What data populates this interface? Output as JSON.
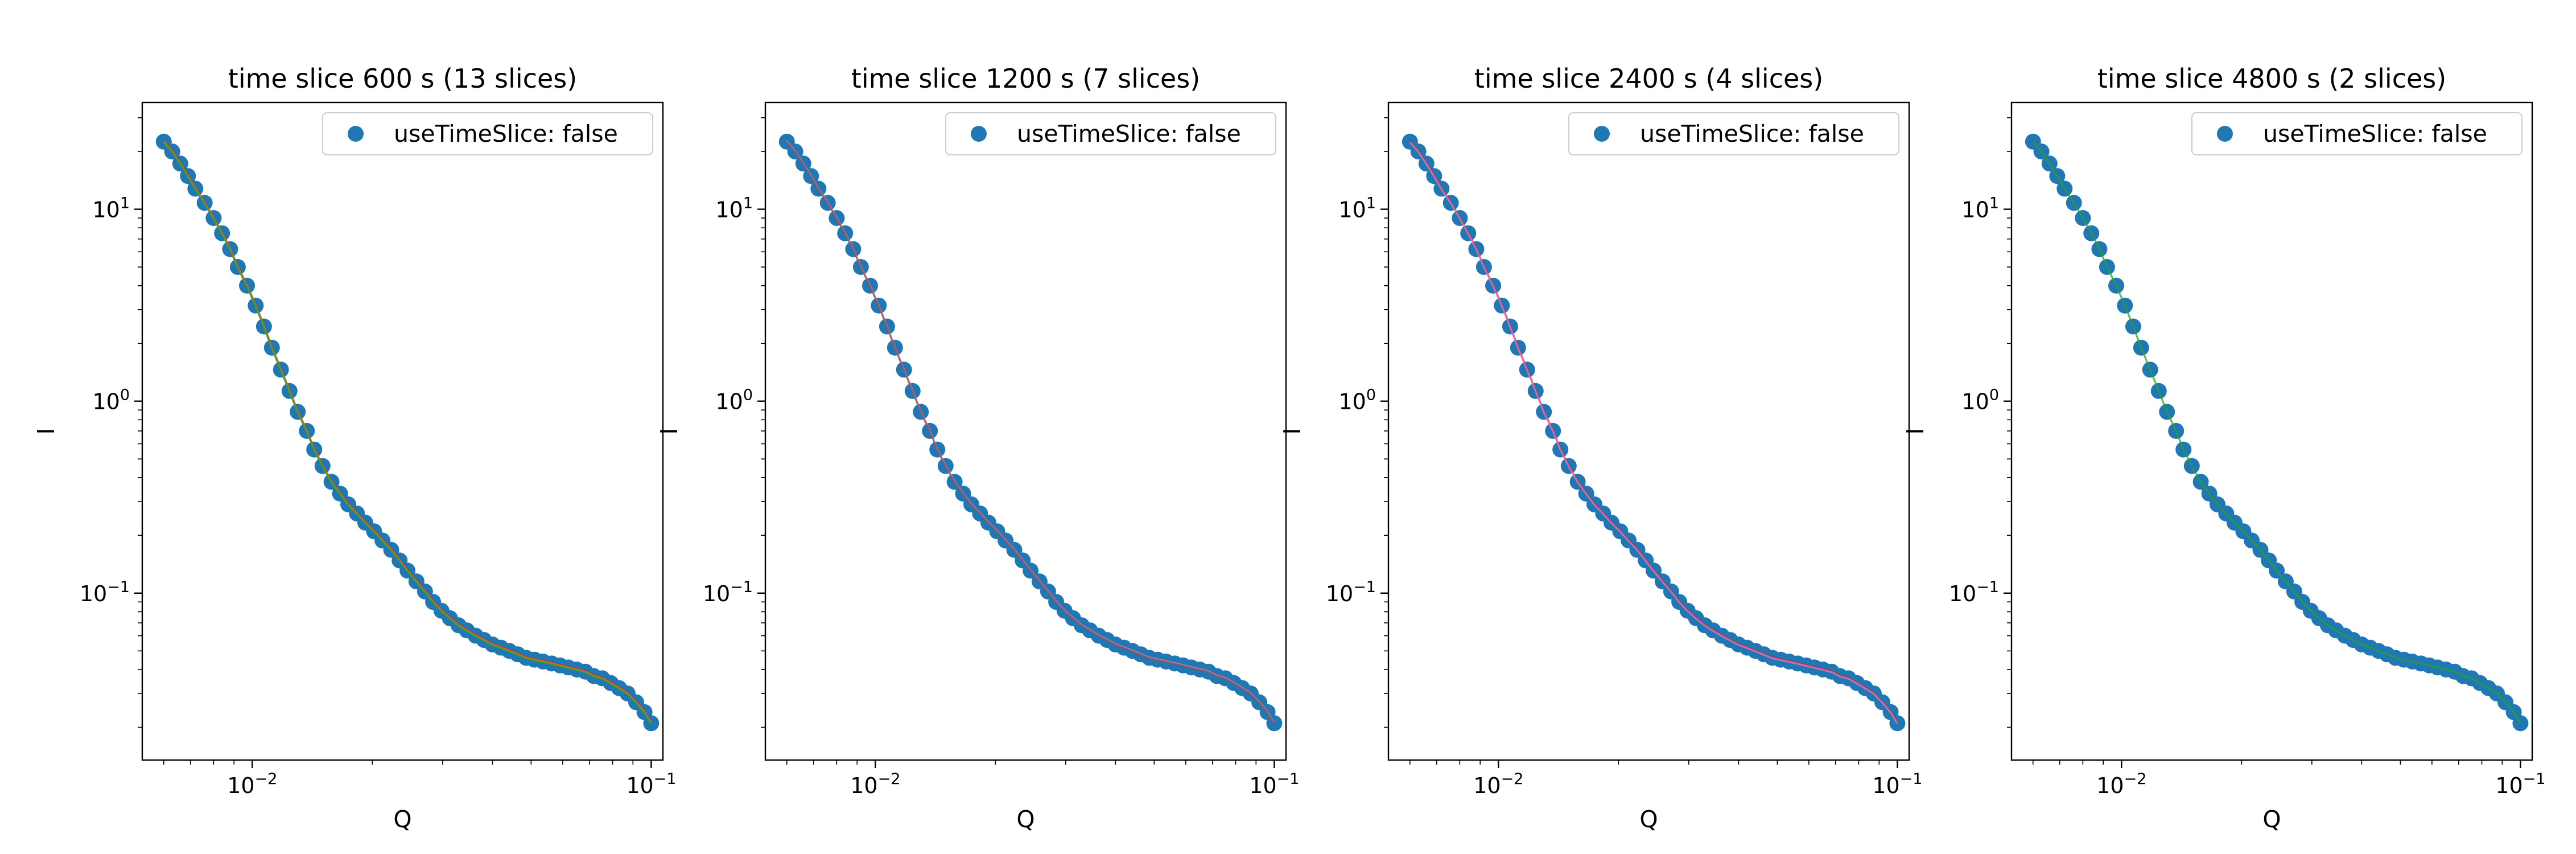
{
  "colors": {
    "marker": "#1f77b4",
    "line_red": "#d62728",
    "line_pink": "#e377c2",
    "line_green": "#2ca02c",
    "axes": "#000000",
    "legend_border": "#cccccc"
  },
  "chart_data": [
    {
      "type": "scatter",
      "title": "time slice 600 s (13 slices)",
      "xlabel": "Q",
      "ylabel": "I",
      "xscale": "log",
      "yscale": "log",
      "xlim": [
        0.0053,
        0.107
      ],
      "ylim": [
        0.0135,
        36
      ],
      "xticks": [
        0.01,
        0.1
      ],
      "xtick_labels": [
        {
          "base": "10",
          "exp": "−2"
        },
        {
          "base": "10",
          "exp": "−1"
        }
      ],
      "yticks": [
        0.1,
        1,
        10
      ],
      "ytick_labels": [
        {
          "base": "10",
          "exp": "−1"
        },
        {
          "base": "10",
          "exp": "0"
        },
        {
          "base": "10",
          "exp": "1"
        }
      ],
      "legend": {
        "position": "upper-right",
        "entries": [
          {
            "label": "useTimeSlice: false",
            "marker": "circle"
          }
        ]
      },
      "overlay_colors": [
        "#d62728",
        "#ff7f0e",
        "#2ca02c"
      ],
      "series": [
        {
          "label": "useTimeSlice: false",
          "x": [
            0.006,
            0.0063,
            0.0066,
            0.0069,
            0.0072,
            0.0076,
            0.008,
            0.0084,
            0.0088,
            0.0092,
            0.0097,
            0.0102,
            0.0107,
            0.0112,
            0.0118,
            0.0124,
            0.013,
            0.0137,
            0.0143,
            0.015,
            0.0158,
            0.0166,
            0.0174,
            0.0183,
            0.0192,
            0.0202,
            0.0212,
            0.0223,
            0.0234,
            0.0245,
            0.0258,
            0.0271,
            0.0284,
            0.0298,
            0.0313,
            0.0329,
            0.0345,
            0.0363,
            0.0381,
            0.04,
            0.042,
            0.0441,
            0.0463,
            0.0486,
            0.051,
            0.0536,
            0.0563,
            0.0591,
            0.062,
            0.0651,
            0.0684,
            0.0718,
            0.0754,
            0.0792,
            0.0831,
            0.0873,
            0.0917,
            0.0962,
            0.1
          ],
          "y": [
            22.5,
            20,
            17.3,
            14.9,
            12.8,
            10.8,
            9,
            7.5,
            6.2,
            5,
            4,
            3.15,
            2.45,
            1.9,
            1.46,
            1.13,
            0.88,
            0.7,
            0.56,
            0.46,
            0.38,
            0.33,
            0.29,
            0.26,
            0.233,
            0.21,
            0.188,
            0.168,
            0.148,
            0.131,
            0.115,
            0.102,
            0.09,
            0.081,
            0.074,
            0.068,
            0.064,
            0.06,
            0.057,
            0.054,
            0.052,
            0.05,
            0.048,
            0.046,
            0.045,
            0.044,
            0.043,
            0.042,
            0.041,
            0.04,
            0.039,
            0.037,
            0.036,
            0.034,
            0.032,
            0.03,
            0.027,
            0.024,
            0.021
          ]
        }
      ]
    },
    {
      "type": "scatter",
      "title": "time slice 1200 s (7 slices)",
      "xlabel": "Q",
      "ylabel": "I",
      "xscale": "log",
      "yscale": "log",
      "xlim": [
        0.0053,
        0.107
      ],
      "ylim": [
        0.0135,
        36
      ],
      "xticks": [
        0.01,
        0.1
      ],
      "xtick_labels": [
        {
          "base": "10",
          "exp": "−2"
        },
        {
          "base": "10",
          "exp": "−1"
        }
      ],
      "yticks": [
        0.1,
        1,
        10
      ],
      "ytick_labels": [
        {
          "base": "10",
          "exp": "−1"
        },
        {
          "base": "10",
          "exp": "0"
        },
        {
          "base": "10",
          "exp": "1"
        }
      ],
      "legend": {
        "position": "upper-right",
        "entries": [
          {
            "label": "useTimeSlice: false",
            "marker": "circle"
          }
        ]
      },
      "overlay_colors": [
        "#e377c2",
        "#8c564b"
      ],
      "series": [
        {
          "label": "useTimeSlice: false",
          "x": [
            0.006,
            0.0063,
            0.0066,
            0.0069,
            0.0072,
            0.0076,
            0.008,
            0.0084,
            0.0088,
            0.0092,
            0.0097,
            0.0102,
            0.0107,
            0.0112,
            0.0118,
            0.0124,
            0.013,
            0.0137,
            0.0143,
            0.015,
            0.0158,
            0.0166,
            0.0174,
            0.0183,
            0.0192,
            0.0202,
            0.0212,
            0.0223,
            0.0234,
            0.0245,
            0.0258,
            0.0271,
            0.0284,
            0.0298,
            0.0313,
            0.0329,
            0.0345,
            0.0363,
            0.0381,
            0.04,
            0.042,
            0.0441,
            0.0463,
            0.0486,
            0.051,
            0.0536,
            0.0563,
            0.0591,
            0.062,
            0.0651,
            0.0684,
            0.0718,
            0.0754,
            0.0792,
            0.0831,
            0.0873,
            0.0917,
            0.0962,
            0.1
          ],
          "y": [
            22.5,
            20,
            17.3,
            14.9,
            12.8,
            10.8,
            9,
            7.5,
            6.2,
            5,
            4,
            3.15,
            2.45,
            1.9,
            1.46,
            1.13,
            0.88,
            0.7,
            0.56,
            0.46,
            0.38,
            0.33,
            0.29,
            0.26,
            0.233,
            0.21,
            0.188,
            0.168,
            0.148,
            0.131,
            0.115,
            0.102,
            0.09,
            0.081,
            0.074,
            0.068,
            0.064,
            0.06,
            0.057,
            0.054,
            0.052,
            0.05,
            0.048,
            0.046,
            0.045,
            0.044,
            0.043,
            0.042,
            0.041,
            0.04,
            0.039,
            0.037,
            0.036,
            0.034,
            0.032,
            0.03,
            0.027,
            0.024,
            0.021
          ]
        }
      ]
    },
    {
      "type": "scatter",
      "title": "time slice 2400 s (4 slices)",
      "xlabel": "Q",
      "ylabel": "I",
      "xscale": "log",
      "yscale": "log",
      "xlim": [
        0.0053,
        0.107
      ],
      "ylim": [
        0.0135,
        36
      ],
      "xticks": [
        0.01,
        0.1
      ],
      "xtick_labels": [
        {
          "base": "10",
          "exp": "−2"
        },
        {
          "base": "10",
          "exp": "−1"
        }
      ],
      "yticks": [
        0.1,
        1,
        10
      ],
      "ytick_labels": [
        {
          "base": "10",
          "exp": "−1"
        },
        {
          "base": "10",
          "exp": "0"
        },
        {
          "base": "10",
          "exp": "1"
        }
      ],
      "legend": {
        "position": "upper-right",
        "entries": [
          {
            "label": "useTimeSlice: false",
            "marker": "circle"
          }
        ]
      },
      "overlay_colors": [
        "#d62728",
        "#e377c2"
      ],
      "series": [
        {
          "label": "useTimeSlice: false",
          "x": [
            0.006,
            0.0063,
            0.0066,
            0.0069,
            0.0072,
            0.0076,
            0.008,
            0.0084,
            0.0088,
            0.0092,
            0.0097,
            0.0102,
            0.0107,
            0.0112,
            0.0118,
            0.0124,
            0.013,
            0.0137,
            0.0143,
            0.015,
            0.0158,
            0.0166,
            0.0174,
            0.0183,
            0.0192,
            0.0202,
            0.0212,
            0.0223,
            0.0234,
            0.0245,
            0.0258,
            0.0271,
            0.0284,
            0.0298,
            0.0313,
            0.0329,
            0.0345,
            0.0363,
            0.0381,
            0.04,
            0.042,
            0.0441,
            0.0463,
            0.0486,
            0.051,
            0.0536,
            0.0563,
            0.0591,
            0.062,
            0.0651,
            0.0684,
            0.0718,
            0.0754,
            0.0792,
            0.0831,
            0.0873,
            0.0917,
            0.0962,
            0.1
          ],
          "y": [
            22.5,
            20,
            17.3,
            14.9,
            12.8,
            10.8,
            9,
            7.5,
            6.2,
            5,
            4,
            3.15,
            2.45,
            1.9,
            1.46,
            1.13,
            0.88,
            0.7,
            0.56,
            0.46,
            0.38,
            0.33,
            0.29,
            0.26,
            0.233,
            0.21,
            0.188,
            0.168,
            0.148,
            0.131,
            0.115,
            0.102,
            0.09,
            0.081,
            0.074,
            0.068,
            0.064,
            0.06,
            0.057,
            0.054,
            0.052,
            0.05,
            0.048,
            0.046,
            0.045,
            0.044,
            0.043,
            0.042,
            0.041,
            0.04,
            0.039,
            0.037,
            0.036,
            0.034,
            0.032,
            0.03,
            0.027,
            0.024,
            0.021
          ]
        }
      ]
    },
    {
      "type": "scatter",
      "title": "time slice 4800 s (2 slices)",
      "xlabel": "Q",
      "ylabel": "I",
      "xscale": "log",
      "yscale": "log",
      "xlim": [
        0.0053,
        0.107
      ],
      "ylim": [
        0.0135,
        36
      ],
      "xticks": [
        0.01,
        0.1
      ],
      "xtick_labels": [
        {
          "base": "10",
          "exp": "−2"
        },
        {
          "base": "10",
          "exp": "−1"
        }
      ],
      "yticks": [
        0.1,
        1,
        10
      ],
      "ytick_labels": [
        {
          "base": "10",
          "exp": "−1"
        },
        {
          "base": "10",
          "exp": "0"
        },
        {
          "base": "10",
          "exp": "1"
        }
      ],
      "legend": {
        "position": "upper-right",
        "entries": [
          {
            "label": "useTimeSlice: false",
            "marker": "circle"
          }
        ]
      },
      "overlay_colors": [
        "#2ca02c"
      ],
      "series": [
        {
          "label": "useTimeSlice: false",
          "x": [
            0.006,
            0.0063,
            0.0066,
            0.0069,
            0.0072,
            0.0076,
            0.008,
            0.0084,
            0.0088,
            0.0092,
            0.0097,
            0.0102,
            0.0107,
            0.0112,
            0.0118,
            0.0124,
            0.013,
            0.0137,
            0.0143,
            0.015,
            0.0158,
            0.0166,
            0.0174,
            0.0183,
            0.0192,
            0.0202,
            0.0212,
            0.0223,
            0.0234,
            0.0245,
            0.0258,
            0.0271,
            0.0284,
            0.0298,
            0.0313,
            0.0329,
            0.0345,
            0.0363,
            0.0381,
            0.04,
            0.042,
            0.0441,
            0.0463,
            0.0486,
            0.051,
            0.0536,
            0.0563,
            0.0591,
            0.062,
            0.0651,
            0.0684,
            0.0718,
            0.0754,
            0.0792,
            0.0831,
            0.0873,
            0.0917,
            0.0962,
            0.1
          ],
          "y": [
            22.5,
            20,
            17.3,
            14.9,
            12.8,
            10.8,
            9,
            7.5,
            6.2,
            5,
            4,
            3.15,
            2.45,
            1.9,
            1.46,
            1.13,
            0.88,
            0.7,
            0.56,
            0.46,
            0.38,
            0.33,
            0.29,
            0.26,
            0.233,
            0.21,
            0.188,
            0.168,
            0.148,
            0.131,
            0.115,
            0.102,
            0.09,
            0.081,
            0.074,
            0.068,
            0.064,
            0.06,
            0.057,
            0.054,
            0.052,
            0.05,
            0.048,
            0.046,
            0.045,
            0.044,
            0.043,
            0.042,
            0.041,
            0.04,
            0.039,
            0.037,
            0.036,
            0.034,
            0.032,
            0.03,
            0.027,
            0.024,
            0.021
          ]
        }
      ]
    }
  ]
}
